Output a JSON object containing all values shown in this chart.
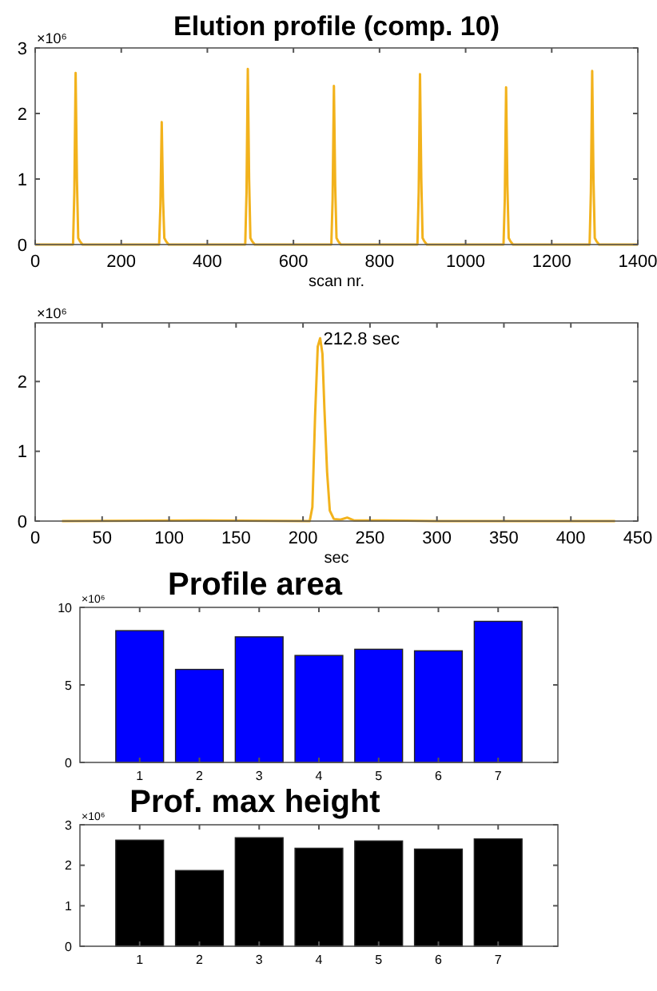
{
  "chart_data": [
    {
      "type": "line",
      "title": "Elution profile (comp. 10)",
      "xlabel": "scan nr.",
      "annotations": [
        "×10⁶"
      ],
      "xlim": [
        0,
        1400
      ],
      "xticks": [
        0,
        200,
        400,
        600,
        800,
        1000,
        1200,
        1400
      ],
      "ylim": [
        0,
        3
      ],
      "yticks": [
        0,
        1,
        2,
        3
      ],
      "series": [
        {
          "color": "#f2b21c",
          "x": [
            0,
            88,
            91,
            94,
            97,
            100,
            104,
            110,
            288,
            291,
            294,
            297,
            300,
            304,
            310,
            488,
            491,
            494,
            497,
            500,
            504,
            510,
            688,
            691,
            694,
            697,
            700,
            704,
            710,
            888,
            891,
            894,
            897,
            900,
            904,
            910,
            1088,
            1091,
            1094,
            1097,
            1100,
            1104,
            1110,
            1288,
            1291,
            1294,
            1297,
            1300,
            1304,
            1310,
            1400
          ],
          "values": [
            0,
            0,
            0.8,
            2.62,
            1.0,
            0.1,
            0.05,
            0,
            0,
            0.6,
            1.87,
            0.7,
            0.1,
            0.05,
            0,
            0,
            0.8,
            2.68,
            1.0,
            0.1,
            0.05,
            0,
            0,
            0.7,
            2.42,
            0.9,
            0.1,
            0.05,
            0,
            0,
            0.8,
            2.6,
            1.0,
            0.1,
            0.05,
            0,
            0,
            0.7,
            2.4,
            0.9,
            0.1,
            0.05,
            0,
            0,
            0.8,
            2.65,
            1.0,
            0.1,
            0.05,
            0,
            0
          ]
        }
      ]
    },
    {
      "type": "line",
      "xlabel": "sec",
      "annotations": [
        "×10⁶",
        {
          "text": "212.8 sec",
          "x": 212.8,
          "y": 2.62
        }
      ],
      "xlim": [
        0,
        450
      ],
      "xticks": [
        0,
        50,
        100,
        150,
        200,
        250,
        300,
        350,
        400,
        450
      ],
      "ylim": [
        0,
        2.84
      ],
      "yticks": [
        0,
        1,
        2
      ],
      "series": [
        {
          "color": "#f2b21c",
          "x": [
            20,
            120,
            205,
            207,
            209,
            211,
            212.8,
            214.5,
            216,
            218,
            220,
            223,
            228,
            233,
            238,
            250,
            260,
            300,
            433
          ],
          "values": [
            0,
            0.01,
            0,
            0.2,
            1.5,
            2.5,
            2.62,
            2.4,
            1.6,
            0.7,
            0.15,
            0.03,
            0.02,
            0.05,
            0.01,
            0.01,
            0.01,
            0,
            0
          ]
        }
      ]
    },
    {
      "type": "bar",
      "title": "Profile area",
      "annotations": [
        "×10⁶"
      ],
      "categories": [
        "1",
        "2",
        "3",
        "4",
        "5",
        "6",
        "7"
      ],
      "ylim": [
        0,
        10
      ],
      "yticks": [
        0,
        5,
        10
      ],
      "series": [
        {
          "color": "#0000ff",
          "values": [
            8.5,
            6.0,
            8.1,
            6.9,
            7.3,
            7.2,
            9.1
          ]
        }
      ]
    },
    {
      "type": "bar",
      "title": "Prof. max height",
      "annotations": [
        "×10⁶"
      ],
      "categories": [
        "1",
        "2",
        "3",
        "4",
        "5",
        "6",
        "7"
      ],
      "ylim": [
        0,
        3
      ],
      "yticks": [
        0,
        1,
        2,
        3
      ],
      "series": [
        {
          "color": "#000000",
          "values": [
            2.62,
            1.87,
            2.68,
            2.42,
            2.6,
            2.4,
            2.65
          ]
        }
      ]
    }
  ]
}
